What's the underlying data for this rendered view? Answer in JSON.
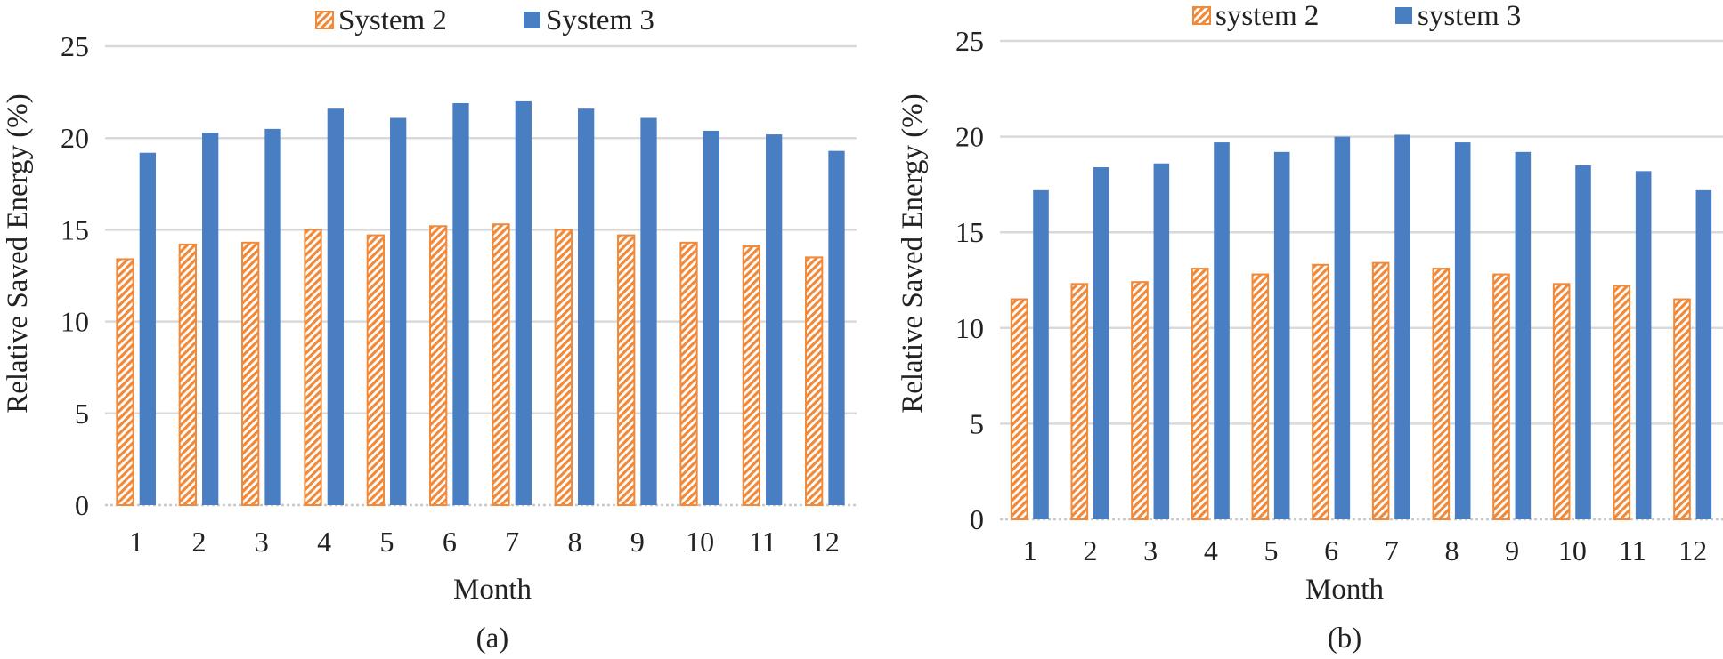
{
  "colors": {
    "series_orange": "#F08A3A",
    "series_blue": "#4A7EC2",
    "grid": "#D9D9D9"
  },
  "chart_data": [
    {
      "type": "bar",
      "panel_label": "(a)",
      "title": "",
      "xlabel": "Month",
      "ylabel": "Relative Saved Energy (%)",
      "ylim": [
        0,
        25
      ],
      "yticks": [
        0,
        5,
        10,
        15,
        20,
        25
      ],
      "grid": true,
      "legend_position": "top-center",
      "categories": [
        "1",
        "2",
        "3",
        "4",
        "5",
        "6",
        "7",
        "8",
        "9",
        "10",
        "11",
        "12"
      ],
      "series": [
        {
          "name": "System 2",
          "style": "hatched",
          "values": [
            13.4,
            14.2,
            14.3,
            15.0,
            14.7,
            15.2,
            15.3,
            15.0,
            14.7,
            14.3,
            14.1,
            13.5
          ]
        },
        {
          "name": "System 3",
          "style": "solid",
          "values": [
            19.2,
            20.3,
            20.5,
            21.6,
            21.1,
            21.9,
            22.0,
            21.6,
            21.1,
            20.4,
            20.2,
            19.3
          ]
        }
      ]
    },
    {
      "type": "bar",
      "panel_label": "(b)",
      "title": "",
      "xlabel": "Month",
      "ylabel": "Relative Saved Energy (%)",
      "ylim": [
        0,
        25
      ],
      "yticks": [
        0,
        5,
        10,
        15,
        20,
        25
      ],
      "grid": true,
      "legend_position": "top-center",
      "categories": [
        "1",
        "2",
        "3",
        "4",
        "5",
        "6",
        "7",
        "8",
        "9",
        "10",
        "11",
        "12"
      ],
      "series": [
        {
          "name": "system 2",
          "style": "hatched",
          "values": [
            11.5,
            12.3,
            12.4,
            13.1,
            12.8,
            13.3,
            13.4,
            13.1,
            12.8,
            12.3,
            12.2,
            11.5
          ]
        },
        {
          "name": "system 3",
          "style": "solid",
          "values": [
            17.2,
            18.4,
            18.6,
            19.7,
            19.2,
            20.0,
            20.1,
            19.7,
            19.2,
            18.5,
            18.2,
            17.2
          ]
        }
      ]
    }
  ]
}
